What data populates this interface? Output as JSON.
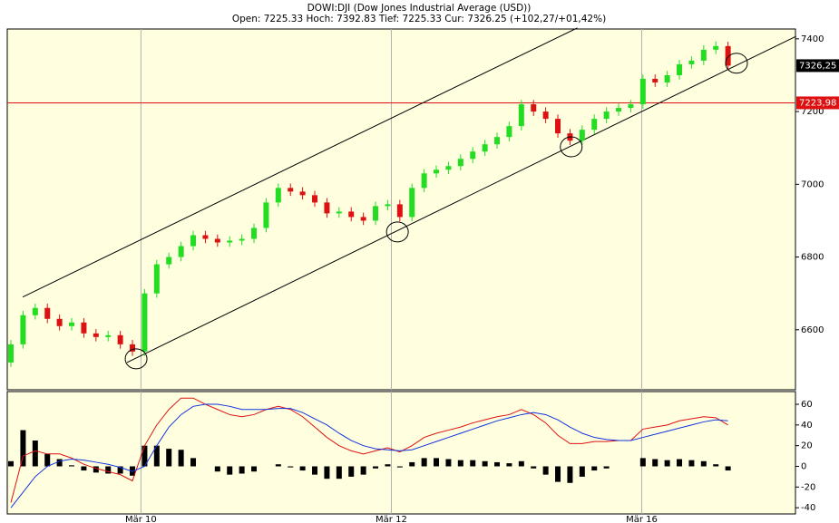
{
  "chart_data": [
    {
      "type": "candlestick",
      "title": "DOWI:DJI (Dow Jones Industrial Average (USD))",
      "subtitle": "Open: 7225.33 Hoch: 7392.83 Tief: 7225.33 Cur: 7326.25 (+102,27/+01,42%)",
      "xlim": [
        -0.3,
        64.55
      ],
      "ylim": [
        6435,
        7427
      ],
      "yticks": [
        6600,
        6800,
        7000,
        7200,
        7400
      ],
      "up_color": "#22dd22",
      "down_color": "#dd1111",
      "open": [
        6510,
        6560,
        6640,
        6660,
        6630,
        6610,
        6620,
        6590,
        6580,
        6585,
        6560,
        6540,
        6700,
        6780,
        6800,
        6830,
        6860,
        6850,
        6840,
        6845,
        6850,
        6880,
        6950,
        6990,
        6980,
        6970,
        6950,
        6920,
        6925,
        6910,
        6900,
        6940,
        6945,
        6910,
        6990,
        7030,
        7040,
        7050,
        7070,
        7090,
        7110,
        7130,
        7160,
        7220,
        7200,
        7180,
        7140,
        7120,
        7150,
        7180,
        7200,
        7210,
        7220,
        7290,
        7280,
        7300,
        7330,
        7340,
        7370,
        7380
      ],
      "high": [
        6572,
        6652,
        6672,
        6672,
        6642,
        6632,
        6632,
        6602,
        6597,
        6597,
        6572,
        6712,
        6792,
        6812,
        6842,
        6872,
        6872,
        6862,
        6857,
        6862,
        6892,
        6962,
        7002,
        7002,
        6992,
        6982,
        6962,
        6937,
        6937,
        6922,
        6952,
        6957,
        6957,
        7002,
        7042,
        7052,
        7062,
        7082,
        7102,
        7122,
        7142,
        7172,
        7232,
        7232,
        7212,
        7192,
        7152,
        7162,
        7192,
        7212,
        7222,
        7232,
        7302,
        7302,
        7312,
        7342,
        7352,
        7382,
        7392.83,
        7392
      ],
      "low": [
        6498,
        6548,
        6628,
        6618,
        6598,
        6598,
        6578,
        6568,
        6568,
        6548,
        6528,
        6528,
        6688,
        6768,
        6788,
        6818,
        6838,
        6828,
        6828,
        6833,
        6838,
        6868,
        6938,
        6968,
        6958,
        6938,
        6908,
        6908,
        6898,
        6888,
        6888,
        6928,
        6898,
        6898,
        6978,
        7018,
        7028,
        7038,
        7058,
        7078,
        7098,
        7118,
        7148,
        7188,
        7168,
        7128,
        7108,
        7108,
        7138,
        7168,
        7188,
        7198,
        7208,
        7268,
        7268,
        7288,
        7318,
        7328,
        7358,
        7314
      ],
      "close": [
        6560,
        6640,
        6660,
        6630,
        6610,
        6620,
        6590,
        6580,
        6585,
        6560,
        6540,
        6700,
        6780,
        6800,
        6830,
        6860,
        6850,
        6840,
        6845,
        6850,
        6880,
        6950,
        6990,
        6980,
        6970,
        6950,
        6920,
        6925,
        6910,
        6900,
        6940,
        6945,
        6910,
        6990,
        7030,
        7040,
        7050,
        7070,
        7090,
        7110,
        7130,
        7160,
        7220,
        7200,
        7180,
        7140,
        7120,
        7150,
        7180,
        7200,
        7210,
        7220,
        7290,
        7280,
        7300,
        7330,
        7340,
        7370,
        7380,
        7326.25
      ],
      "current": {
        "value": 7326.25,
        "label": "7326,25"
      },
      "hline": {
        "value": 7223.98,
        "label": "7223,98",
        "color": "#dd1111"
      },
      "trendlines": [
        {
          "points": [
            [
              0.97,
              6690
            ],
            [
              46.6,
              7430
            ]
          ]
        },
        {
          "points": [
            [
              9.55,
              6510
            ],
            [
              64.6,
              7407
            ]
          ]
        }
      ],
      "circles": [
        [
          10.3,
          6520
        ],
        [
          31.8,
          6869
        ],
        [
          46.1,
          7103
        ],
        [
          59.7,
          7333
        ]
      ]
    },
    {
      "type": "macd",
      "xlim": [
        -0.3,
        64.55
      ],
      "ylim": [
        -46,
        72.3
      ],
      "yticks": [
        60,
        40,
        20,
        0,
        -20,
        -40
      ],
      "xticks": [
        {
          "value": 10.7,
          "label": "Mär 10"
        },
        {
          "value": 31.3,
          "label": "Mär 12"
        },
        {
          "value": 51.9,
          "label": "Mär 16"
        }
      ],
      "series": [
        {
          "color": "#dd1111",
          "values": [
            -35,
            10,
            15,
            12,
            12,
            8,
            2,
            -2,
            -5,
            -8,
            -14,
            20,
            40,
            55,
            66,
            66,
            60,
            55,
            50,
            48,
            50,
            55,
            58,
            55,
            48,
            38,
            28,
            20,
            15,
            12,
            15,
            18,
            14,
            20,
            28,
            32,
            35,
            38,
            42,
            45,
            48,
            50,
            55,
            50,
            42,
            30,
            22,
            22,
            24,
            24,
            25,
            25,
            36,
            38,
            40,
            44,
            46,
            48,
            47,
            40
          ]
        },
        {
          "color": "#1133dd",
          "values": [
            -40,
            -25,
            -10,
            0,
            5,
            7,
            6,
            4,
            2,
            -1,
            -5,
            0,
            20,
            38,
            50,
            58,
            60,
            60,
            58,
            55,
            55,
            55,
            56,
            56,
            52,
            46,
            40,
            32,
            25,
            20,
            17,
            16,
            15,
            16,
            20,
            24,
            28,
            32,
            36,
            40,
            44,
            47,
            50,
            52,
            50,
            45,
            38,
            32,
            28,
            26,
            25,
            25,
            28,
            31,
            34,
            37,
            40,
            43,
            45,
            44
          ]
        }
      ],
      "histogram": {
        "color": "#000000",
        "values": [
          5,
          35,
          25,
          12,
          7,
          1,
          -4,
          -6,
          -7,
          -7,
          -9,
          20,
          20,
          17,
          16,
          8,
          0,
          -5,
          -8,
          -7,
          -5,
          0,
          2,
          -1,
          -4,
          -8,
          -12,
          -12,
          -10,
          -8,
          -2,
          2,
          -1,
          4,
          8,
          8,
          7,
          6,
          6,
          5,
          4,
          3,
          5,
          -2,
          -8,
          -15,
          -16,
          -10,
          -4,
          -2,
          0,
          0,
          8,
          7,
          6,
          7,
          6,
          5,
          2,
          -4
        ]
      }
    }
  ]
}
